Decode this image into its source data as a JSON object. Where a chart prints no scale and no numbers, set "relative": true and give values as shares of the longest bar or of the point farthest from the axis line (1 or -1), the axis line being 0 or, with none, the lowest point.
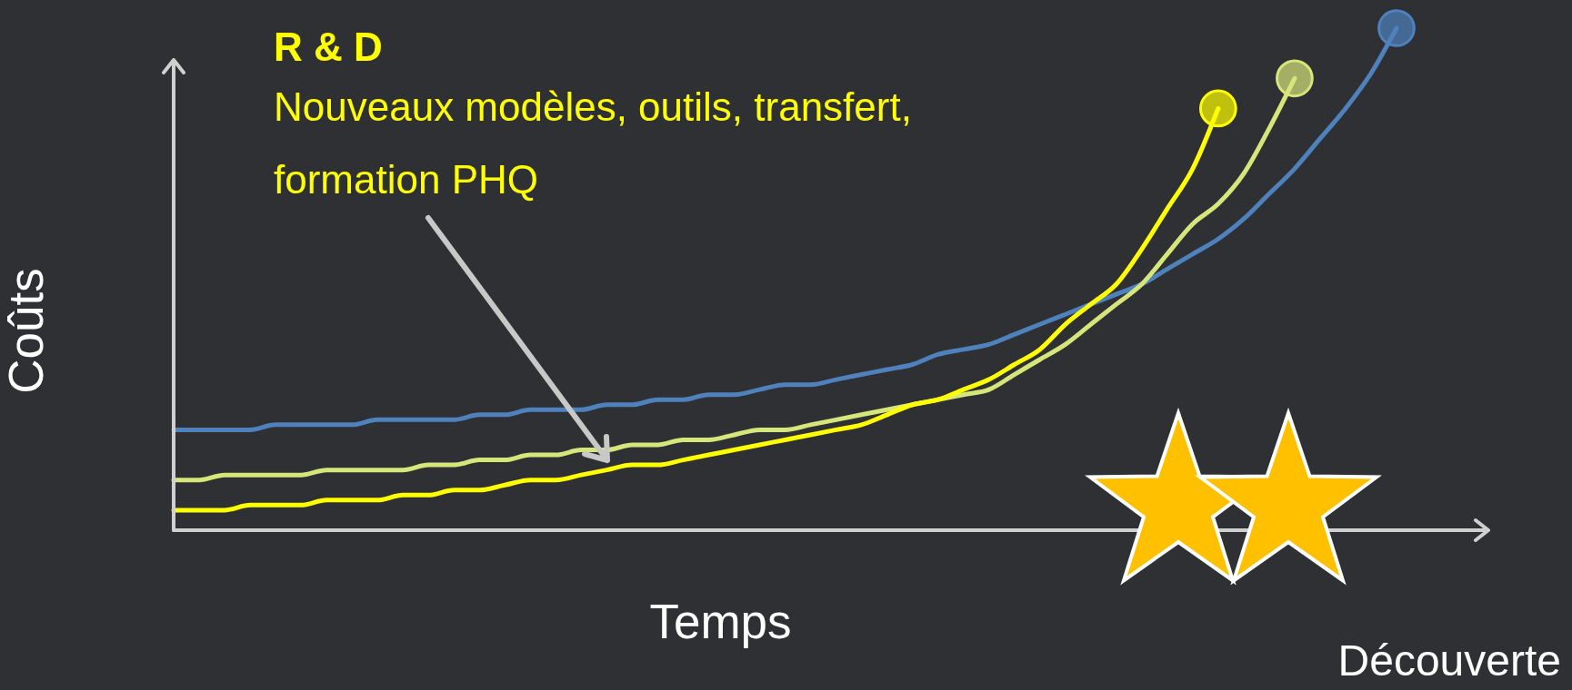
{
  "chart_data": {
    "type": "line",
    "relative": true,
    "xlabel": "Temps",
    "ylabel": "Coûts",
    "annotations": [
      "R & D",
      "Nouveaux modèles, outils, transfert, formation PHQ",
      "Découverte"
    ],
    "categories": [
      null,
      null,
      null,
      null,
      null,
      null,
      null,
      null,
      null,
      null,
      null,
      null,
      null,
      null,
      null,
      null,
      null,
      null,
      null,
      null,
      null,
      null,
      null,
      null,
      null,
      null,
      null,
      null,
      null,
      null,
      null,
      null,
      null,
      null,
      null,
      null,
      null,
      null,
      null,
      null,
      null,
      null,
      null,
      null,
      null,
      null,
      null,
      null,
      null
    ],
    "series": [
      {
        "color": "#4f81bd",
        "values": [
          0.2,
          0.2,
          0.2,
          0.2,
          0.21,
          0.21,
          0.21,
          0.21,
          0.22,
          0.22,
          0.22,
          0.22,
          0.23,
          0.23,
          0.24,
          0.24,
          0.24,
          0.25,
          0.25,
          0.26,
          0.26,
          0.27,
          0.27,
          0.28,
          0.29,
          0.29,
          0.3,
          0.31,
          0.32,
          0.33,
          0.35,
          0.36,
          0.37,
          0.39,
          0.41,
          0.43,
          0.45,
          0.47,
          0.49,
          0.52,
          0.55,
          0.58,
          0.62,
          0.67,
          0.72,
          0.78,
          0.84,
          0.91,
          1
        ]
      },
      {
        "color": "#d7e67a",
        "values": [
          0.1,
          0.1,
          0.11,
          0.11,
          0.11,
          0.11,
          0.12,
          0.12,
          0.12,
          0.12,
          0.13,
          0.13,
          0.14,
          0.14,
          0.15,
          0.15,
          0.16,
          0.16,
          0.17,
          0.17,
          0.18,
          0.18,
          0.19,
          0.2,
          0.2,
          0.21,
          0.22,
          0.23,
          0.24,
          0.25,
          0.26,
          0.27,
          0.28,
          0.31,
          0.34,
          0.37,
          0.41,
          0.45,
          0.49,
          0.55,
          0.61,
          0.65,
          0.71,
          0.8,
          0.9,
          null,
          null,
          null,
          null
        ]
      },
      {
        "color": "#ffff00",
        "values": [
          0.04,
          0.04,
          0.04,
          0.05,
          0.05,
          0.05,
          0.06,
          0.06,
          0.06,
          0.07,
          0.07,
          0.08,
          0.08,
          0.09,
          0.1,
          0.1,
          0.11,
          0.12,
          0.13,
          0.13,
          0.14,
          0.15,
          0.16,
          0.17,
          0.18,
          0.19,
          0.2,
          0.21,
          0.23,
          0.25,
          0.26,
          0.28,
          0.3,
          0.33,
          0.36,
          0.41,
          0.45,
          0.49,
          0.56,
          0.64,
          0.72,
          0.84,
          null,
          null,
          null,
          null,
          null,
          null,
          null
        ]
      }
    ]
  }
}
